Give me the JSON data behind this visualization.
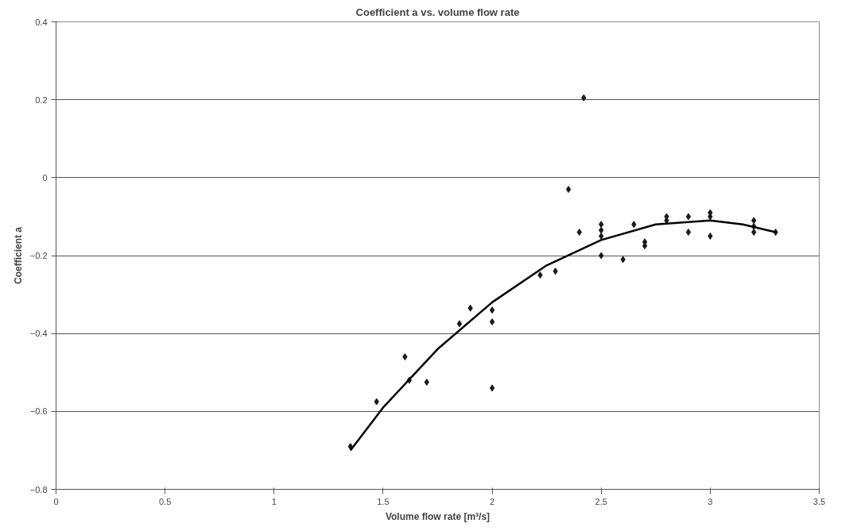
{
  "chart_data": {
    "type": "scatter",
    "title": "Coefficient a vs. volume flow rate",
    "xlabel": "Volume flow rate [m³/s]",
    "ylabel": "Coefficient a",
    "xlim": [
      0,
      3.5
    ],
    "xticks": [
      0,
      0.5,
      1,
      1.5,
      2,
      2.5,
      3,
      3.5
    ],
    "ylim": [
      -0.8,
      0.4
    ],
    "yticks": [
      -0.8,
      -0.6,
      -0.4,
      -0.2,
      0,
      0.2,
      0.4
    ],
    "grid": "y",
    "marker": "diamond",
    "series": [
      {
        "color": "#1a1a1a",
        "x": [
          1.35,
          1.47,
          1.6,
          1.62,
          1.7,
          1.85,
          1.9,
          2.0,
          2.0,
          2.0,
          2.22,
          2.29,
          2.35,
          2.4,
          2.42,
          2.5,
          2.5,
          2.5,
          2.5,
          2.6,
          2.65,
          2.7,
          2.7,
          2.8,
          2.8,
          2.9,
          2.9,
          3.0,
          3.0,
          3.0,
          3.2,
          3.2,
          3.2,
          3.3
        ],
        "values": [
          -0.69,
          -0.575,
          -0.46,
          -0.52,
          -0.525,
          -0.375,
          -0.335,
          -0.34,
          -0.37,
          -0.54,
          -0.25,
          -0.24,
          -0.03,
          -0.14,
          0.205,
          -0.135,
          -0.12,
          -0.15,
          -0.2,
          -0.21,
          -0.12,
          -0.165,
          -0.175,
          -0.1,
          -0.11,
          -0.1,
          -0.14,
          -0.09,
          -0.1,
          -0.15,
          -0.11,
          -0.125,
          -0.14,
          -0.14
        ]
      },
      {
        "type": "line",
        "color": "#000000",
        "line_style": "solid",
        "marker": "none",
        "x": [
          1.35,
          1.5,
          1.75,
          2.0,
          2.25,
          2.5,
          2.75,
          3.0,
          3.15,
          3.3
        ],
        "values": [
          -0.7,
          -0.59,
          -0.44,
          -0.32,
          -0.225,
          -0.16,
          -0.12,
          -0.11,
          -0.12,
          -0.14
        ]
      }
    ]
  }
}
